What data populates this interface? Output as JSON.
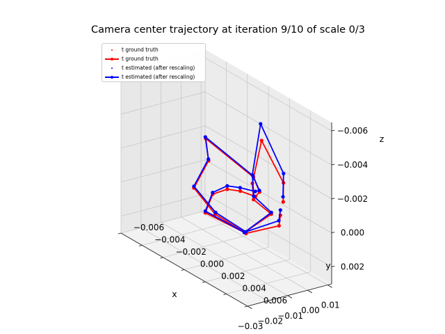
{
  "chart_data": {
    "type": "line",
    "projection": "3d",
    "title": "Camera center trajectory at iteration 9/10 of scale 0/3",
    "xlabel": "x",
    "ylabel": "y",
    "zlabel": "z",
    "xlim": [
      0.012,
      -0.03
    ],
    "ylim": [
      -0.006,
      0.006
    ],
    "zlim": [
      0.003,
      -0.0065
    ],
    "x_ticks": [
      "0.01",
      "0.00",
      "−0.01",
      "−0.02",
      "−0.03"
    ],
    "x_tick_values": [
      0.01,
      0.0,
      -0.01,
      -0.02,
      -0.03
    ],
    "y_ticks": [
      "0.006",
      "0.004",
      "0.002",
      "0.000",
      "−0.002",
      "−0.004",
      "−0.006"
    ],
    "y_tick_values": [
      0.006,
      0.004,
      0.002,
      0.0,
      -0.002,
      -0.004,
      -0.006
    ],
    "z_ticks": [
      "−0.006",
      "−0.004",
      "−0.002",
      "0.000",
      "0.002"
    ],
    "z_tick_values": [
      -0.006,
      -0.004,
      -0.002,
      0.0,
      0.002
    ],
    "grid": true,
    "legend_position": "upper-left",
    "legend": [
      {
        "label": "t ground truth",
        "color": "#ff0000",
        "style": "points"
      },
      {
        "label": "t ground truth",
        "color": "#ff0000",
        "style": "line-marker"
      },
      {
        "label": "t estimated (after rescaling)",
        "color": "#0000ff",
        "style": "points"
      },
      {
        "label": "t estimated (after rescaling)",
        "color": "#0000ff",
        "style": "line-marker"
      }
    ],
    "series": [
      {
        "name": "t ground truth",
        "color": "#ff0000",
        "x": [
          -0.0043,
          -0.001,
          0.0065,
          0.0082,
          0.003,
          0.0045,
          0.0005,
          -0.0042,
          -0.0047,
          -0.0059,
          -0.0015,
          0.0045,
          0.0055,
          0.0072,
          -0.0235,
          -0.0226,
          -0.0236,
          -0.0188,
          -0.0065,
          -0.0048,
          -0.0041
        ],
        "y": [
          0.0045,
          0.0039,
          0.0004,
          -0.0008,
          0.0003,
          0.0017,
          -0.0001,
          -0.0029,
          -0.0021,
          -0.0005,
          -0.0001,
          0.0002,
          0.0004,
          -0.0005,
          0.0008,
          0.0009,
          -0.0003,
          0.0008,
          0.0014,
          0.0042,
          0.0042
        ],
        "z": [
          -0.0018,
          -0.0026,
          -0.0036,
          -0.0006,
          -0.0002,
          0.0002,
          0.0018,
          0.0015,
          0.0001,
          -0.0008,
          -0.0007,
          -0.0003,
          -0.0006,
          -0.0011,
          -0.0048,
          -0.0035,
          -0.0015,
          -0.0002,
          0.0011,
          -0.0003,
          -0.0009
        ]
      },
      {
        "name": "t estimated (after rescaling)",
        "color": "#0000ff",
        "x": [
          -0.0044,
          -0.0015,
          0.006,
          0.0082,
          0.0031,
          0.0045,
          0.0005,
          -0.0042,
          -0.0048,
          -0.0059,
          -0.0016,
          0.0044,
          0.0054,
          0.0069,
          -0.0237,
          -0.0227,
          -0.0236,
          -0.0186,
          -0.0066,
          -0.0049,
          -0.0041
        ],
        "y": [
          0.0045,
          0.004,
          0.0004,
          -0.0008,
          0.0003,
          0.0017,
          -0.0001,
          -0.0029,
          -0.0021,
          -0.0005,
          -0.0001,
          0.0002,
          0.0004,
          -0.0005,
          0.0008,
          0.0009,
          -0.0003,
          0.0008,
          0.0014,
          0.0042,
          0.0042
        ],
        "z": [
          -0.0021,
          -0.0032,
          -0.0046,
          -0.0011,
          -0.0004,
          0.0001,
          0.0018,
          0.0014,
          0.0,
          -0.001,
          -0.0009,
          -0.0006,
          -0.0007,
          -0.0012,
          -0.0049,
          -0.0036,
          -0.0016,
          -0.0003,
          0.001,
          -0.0006,
          -0.0012
        ]
      }
    ]
  }
}
